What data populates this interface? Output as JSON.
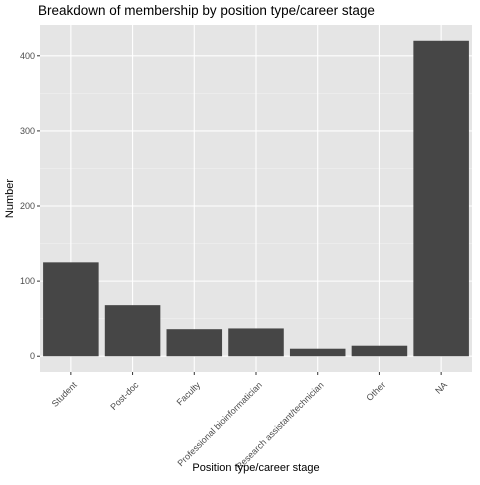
{
  "chart_data": {
    "type": "bar",
    "title": "Breakdown of membership by position type/career stage",
    "xlabel": "Position type/career stage",
    "ylabel": "Number",
    "categories": [
      "Student",
      "Post-doc",
      "Faculty",
      "Professional bioinformatician",
      "Research assistant/technician",
      "Other",
      "NA"
    ],
    "values": [
      125,
      68,
      36,
      37,
      10,
      14,
      420
    ],
    "yticks": [
      "0",
      "100",
      "200",
      "300",
      "400"
    ],
    "ylim": [
      -21,
      441
    ],
    "grid": true,
    "legend": "none",
    "colors": {
      "bar": "#464646",
      "panel": "#e5e5e5",
      "grid_major": "#ffffff",
      "grid_minor": "#f0f0f0",
      "tick_text": "#4d4d4d",
      "axis_text": "#000000"
    }
  }
}
